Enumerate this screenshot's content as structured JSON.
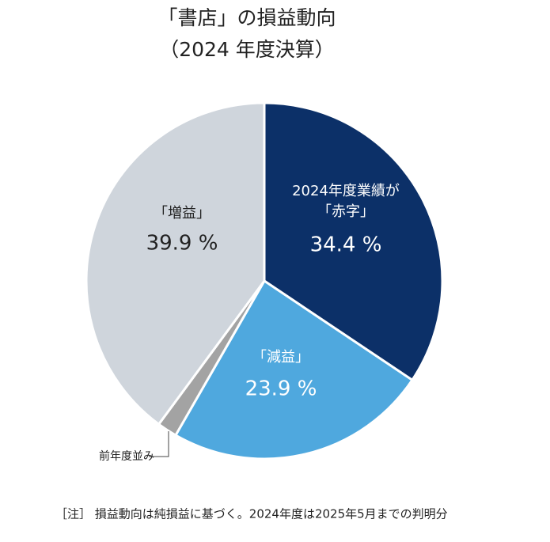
{
  "chart_data": {
    "type": "pie",
    "title": [
      "「書店」の損益動向",
      "（2024 年度決算）"
    ],
    "categories": [
      [
        "2024年度業績が",
        "「赤字」"
      ],
      [
        "「減益」"
      ],
      [
        "前年度並み"
      ],
      [
        "「増益」"
      ]
    ],
    "values": [
      34.4,
      23.9,
      1.8,
      39.9
    ],
    "value_labels": [
      "34.4 %",
      "23.9 %",
      null,
      "39.9 %"
    ],
    "colors": [
      "#0c3068",
      "#4fa8de",
      "#a3a3a3",
      "#cfd5dc"
    ],
    "note": "［注］ 損益動向は純損益に基づく。2024年度は2025年5月までの判明分"
  }
}
